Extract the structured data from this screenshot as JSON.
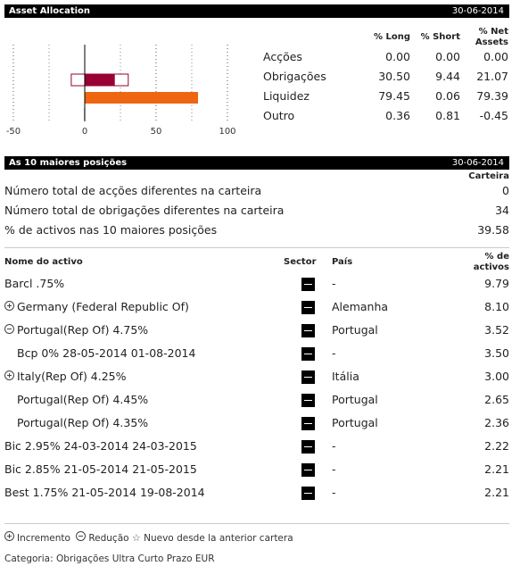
{
  "allocation": {
    "title": "Asset Allocation",
    "date": "30-06-2014",
    "col_long": "% Long",
    "col_short": "% Short",
    "col_net": "% Net Assets",
    "rows": [
      {
        "name": "Acções",
        "long": "0.00",
        "short": "0.00",
        "net": "0.00"
      },
      {
        "name": "Obrigações",
        "long": "30.50",
        "short": "9.44",
        "net": "21.07"
      },
      {
        "name": "Liquidez",
        "long": "79.45",
        "short": "0.06",
        "net": "79.39"
      },
      {
        "name": "Outro",
        "long": "0.36",
        "short": "0.81",
        "net": "-0.45"
      }
    ]
  },
  "chart_data": {
    "type": "bar",
    "orientation": "horizontal",
    "categories": [
      "Acções",
      "Obrigações",
      "Liquidez",
      "Outro"
    ],
    "series": [
      {
        "name": "% Long",
        "values": [
          0.0,
          30.5,
          79.45,
          0.36
        ]
      },
      {
        "name": "% Short",
        "values": [
          0.0,
          9.44,
          0.06,
          0.81
        ]
      },
      {
        "name": "% Net Assets",
        "values": [
          0.0,
          21.07,
          79.39,
          -0.45
        ]
      }
    ],
    "xlim": [
      -50,
      100
    ],
    "xticks": [
      "-50",
      "0",
      "50",
      "100"
    ],
    "colors": {
      "obrigacoes": "#990033",
      "liquidez": "#ee6611"
    }
  },
  "top10": {
    "title": "As 10 maiores posições",
    "date": "30-06-2014",
    "carteira_label": "Carteira",
    "stats": [
      {
        "label": "Número total de acções diferentes na carteira",
        "value": "0"
      },
      {
        "label": "Número total de obrigações diferentes na carteira",
        "value": "34"
      },
      {
        "label": "% de activos nas 10 maiores posições",
        "value": "39.58"
      }
    ],
    "col_name": "Nome do activo",
    "col_sector": "Sector",
    "col_country": "País",
    "col_pct": "% de activos",
    "holdings": [
      {
        "name": "Barcl .75%",
        "country": "-",
        "pct": "9.79",
        "marker": "",
        "indent": 0
      },
      {
        "name": "Germany (Federal Republic Of)",
        "country": "Alemanha",
        "pct": "8.10",
        "marker": "plus",
        "indent": 0
      },
      {
        "name": "Portugal(Rep Of) 4.75%",
        "country": "Portugal",
        "pct": "3.52",
        "marker": "minus",
        "indent": 0
      },
      {
        "name": "Bcp 0% 28-05-2014 01-08-2014",
        "country": "-",
        "pct": "3.50",
        "marker": "",
        "indent": 1
      },
      {
        "name": "Italy(Rep Of) 4.25%",
        "country": "Itália",
        "pct": "3.00",
        "marker": "plus",
        "indent": 0
      },
      {
        "name": "Portugal(Rep Of) 4.45%",
        "country": "Portugal",
        "pct": "2.65",
        "marker": "",
        "indent": 1
      },
      {
        "name": "Portugal(Rep Of) 4.35%",
        "country": "Portugal",
        "pct": "2.36",
        "marker": "",
        "indent": 1
      },
      {
        "name": "Bic 2.95% 24-03-2014 24-03-2015",
        "country": "-",
        "pct": "2.22",
        "marker": "",
        "indent": 0
      },
      {
        "name": "Bic 2.85% 21-05-2014 21-05-2015",
        "country": "-",
        "pct": "2.21",
        "marker": "",
        "indent": 0
      },
      {
        "name": "Best 1.75% 21-05-2014 19-08-2014",
        "country": "-",
        "pct": "2.21",
        "marker": "",
        "indent": 0
      }
    ],
    "legend": {
      "increase": "Incremento",
      "decrease": "Redução",
      "new": "Nuevo desde la anterior cartera"
    },
    "category_label": "Categoria:",
    "category_value": "Obrigações Ultra Curto Prazo EUR"
  }
}
